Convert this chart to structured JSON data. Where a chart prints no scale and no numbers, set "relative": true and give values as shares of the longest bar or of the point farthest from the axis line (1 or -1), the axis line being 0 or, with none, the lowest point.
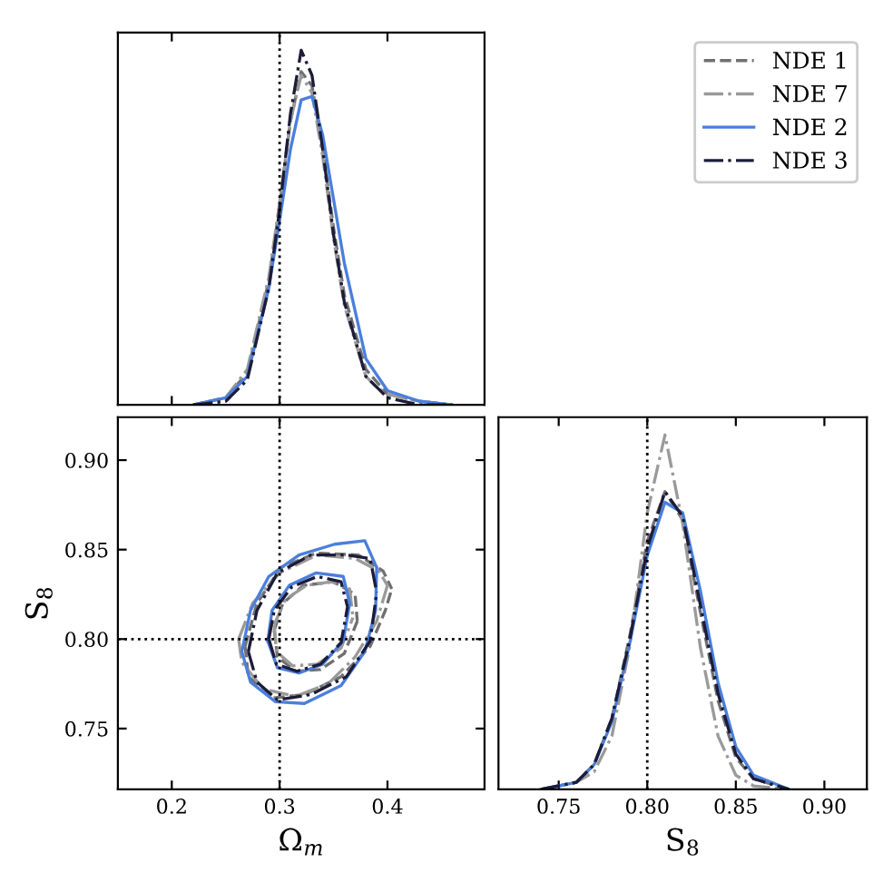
{
  "chart_data": [
    {
      "type": "line",
      "relative": true,
      "xlim": [
        0.15,
        0.49
      ],
      "xticks": [
        0.2,
        0.3,
        0.4
      ],
      "tick_labels": false,
      "legend": "top right",
      "grid": false,
      "ref_lines": [
        {
          "axis": "x",
          "value": 0.3,
          "color": "#000000",
          "line_style": "dotted"
        }
      ],
      "series": [
        {
          "name": "NDE 1",
          "color": "#707070",
          "line_style": "dashed",
          "x": [
            0.22,
            0.25,
            0.27,
            0.29,
            0.3,
            0.31,
            0.32,
            0.33,
            0.34,
            0.35,
            0.36,
            0.38,
            0.4,
            0.43,
            0.46
          ],
          "values": [
            0,
            0.02,
            0.09,
            0.35,
            0.56,
            0.8,
            0.94,
            0.9,
            0.72,
            0.5,
            0.31,
            0.1,
            0.03,
            0.01,
            0
          ]
        },
        {
          "name": "NDE 7",
          "color": "#9a9a9a",
          "line_style": "dashdot",
          "x": [
            0.22,
            0.25,
            0.27,
            0.29,
            0.3,
            0.31,
            0.32,
            0.33,
            0.34,
            0.35,
            0.36,
            0.38,
            0.39,
            0.4,
            0.43,
            0.46
          ],
          "values": [
            0,
            0.02,
            0.1,
            0.36,
            0.57,
            0.8,
            0.93,
            0.88,
            0.7,
            0.47,
            0.28,
            0.08,
            0.05,
            0.03,
            0.01,
            0
          ]
        },
        {
          "name": "NDE 2",
          "color": "#4a7fdc",
          "line_style": "solid",
          "x": [
            0.22,
            0.25,
            0.27,
            0.29,
            0.3,
            0.31,
            0.32,
            0.33,
            0.34,
            0.35,
            0.36,
            0.38,
            0.4,
            0.43,
            0.46
          ],
          "values": [
            0,
            0.02,
            0.08,
            0.33,
            0.52,
            0.72,
            0.86,
            0.87,
            0.76,
            0.58,
            0.4,
            0.13,
            0.04,
            0.01,
            0
          ]
        },
        {
          "name": "NDE 3",
          "color": "#1c1c3a",
          "line_style": "dashdot",
          "x": [
            0.22,
            0.25,
            0.27,
            0.29,
            0.3,
            0.31,
            0.32,
            0.33,
            0.34,
            0.35,
            0.36,
            0.38,
            0.4,
            0.43,
            0.46
          ],
          "values": [
            0,
            0.01,
            0.07,
            0.33,
            0.55,
            0.82,
            1,
            0.93,
            0.72,
            0.48,
            0.29,
            0.08,
            0.02,
            0,
            0
          ]
        }
      ]
    },
    {
      "type": "line",
      "xlabel": "Ω$_{m}$",
      "ylabel": "S$_{8}$",
      "xlim": [
        0.15,
        0.49
      ],
      "xticks": [
        0.2,
        0.3,
        0.4
      ],
      "ylim": [
        0.716,
        0.924
      ],
      "yticks": [
        0.75,
        {
          "value": 0.8,
          "label": "0.80"
        },
        0.85,
        {
          "value": 0.9,
          "label": "0.90"
        }
      ],
      "grid": false,
      "ref_lines": [
        {
          "axis": "x",
          "value": 0.3,
          "color": "#000000",
          "line_style": "dotted"
        },
        {
          "axis": "y",
          "value": 0.8,
          "color": "#000000",
          "line_style": "dotted"
        }
      ],
      "series": [
        {
          "color": "#707070",
          "line_style": "dashed",
          "x": [
            0.268,
            0.279,
            0.301,
            0.334,
            0.373,
            0.396,
            0.404,
            null,
            0.268,
            0.271,
            0.293,
            0.323,
            0.357,
            0.384,
            0.398,
            0.404,
            null,
            0.295,
            0.303,
            0.322,
            0.35,
            0.37,
            0.372,
            null,
            0.295,
            0.298,
            0.315,
            0.338,
            0.36,
            0.372
          ],
          "values": [
            0.796,
            0.82,
            0.84,
            0.848,
            0.847,
            0.838,
            0.828,
            null,
            0.796,
            0.779,
            0.767,
            0.769,
            0.779,
            0.796,
            0.816,
            0.828,
            null,
            0.805,
            0.82,
            0.83,
            0.832,
            0.825,
            0.81,
            null,
            0.805,
            0.79,
            0.782,
            0.783,
            0.792,
            0.81
          ]
        },
        {
          "color": "#9a9a9a",
          "line_style": "dashdot",
          "x": [
            0.262,
            0.275,
            0.3,
            0.335,
            0.37,
            0.392,
            0.4,
            null,
            0.262,
            0.265,
            0.285,
            0.315,
            0.345,
            0.37,
            0.39,
            0.4,
            null,
            0.295,
            0.305,
            0.325,
            0.348,
            0.365,
            0.368,
            null,
            0.295,
            0.297,
            0.312,
            0.335,
            0.357,
            0.368
          ],
          "values": [
            0.8,
            0.82,
            0.837,
            0.847,
            0.845,
            0.838,
            0.83,
            null,
            0.8,
            0.787,
            0.772,
            0.768,
            0.775,
            0.79,
            0.81,
            0.83,
            null,
            0.808,
            0.822,
            0.83,
            0.832,
            0.828,
            0.812,
            null,
            0.808,
            0.793,
            0.785,
            0.786,
            0.795,
            0.812
          ]
        },
        {
          "color": "#4a7fdc",
          "line_style": "solid",
          "x": [
            0.265,
            0.273,
            0.29,
            0.318,
            0.351,
            0.379,
            0.39,
            null,
            0.265,
            0.273,
            0.296,
            0.323,
            0.357,
            0.379,
            0.389,
            0.39,
            null,
            0.289,
            0.293,
            0.309,
            0.334,
            0.359,
            0.365,
            null,
            0.289,
            0.298,
            0.318,
            0.34,
            0.359,
            0.365
          ],
          "values": [
            0.793,
            0.816,
            0.835,
            0.847,
            0.853,
            0.855,
            0.84,
            null,
            0.793,
            0.776,
            0.765,
            0.764,
            0.774,
            0.793,
            0.816,
            0.84,
            null,
            0.799,
            0.816,
            0.83,
            0.837,
            0.835,
            0.82,
            null,
            0.799,
            0.784,
            0.781,
            0.786,
            0.799,
            0.82
          ]
        },
        {
          "color": "#1c1c3a",
          "line_style": "dashdot",
          "x": [
            0.271,
            0.279,
            0.298,
            0.329,
            0.362,
            0.384,
            0.39,
            null,
            0.271,
            0.279,
            0.298,
            0.329,
            0.362,
            0.384,
            0.39,
            null,
            0.29,
            0.295,
            0.311,
            0.335,
            0.357,
            0.363,
            null,
            0.29,
            0.297,
            0.316,
            0.338,
            0.357,
            0.363
          ],
          "values": [
            0.793,
            0.816,
            0.837,
            0.847,
            0.847,
            0.845,
            0.826,
            null,
            0.793,
            0.776,
            0.766,
            0.769,
            0.779,
            0.799,
            0.826,
            null,
            0.8,
            0.816,
            0.829,
            0.835,
            0.832,
            0.818,
            null,
            0.8,
            0.786,
            0.782,
            0.786,
            0.798,
            0.818
          ]
        }
      ]
    },
    {
      "type": "line",
      "relative": true,
      "xlabel": "S$_{8}$",
      "xlim": [
        0.716,
        0.924
      ],
      "xticks": [
        0.75,
        {
          "value": 0.8,
          "label": "0.80"
        },
        0.85,
        {
          "value": 0.9,
          "label": "0.90"
        }
      ],
      "tick_labels": "x",
      "grid": false,
      "ref_lines": [
        {
          "axis": "x",
          "value": 0.8,
          "color": "#000000",
          "line_style": "dotted"
        }
      ],
      "series": [
        {
          "color": "#707070",
          "line_style": "dashed",
          "x": [
            0.74,
            0.76,
            0.77,
            0.78,
            0.79,
            0.8,
            0.81,
            0.82,
            0.83,
            0.84,
            0.85,
            0.86,
            0.88
          ],
          "values": [
            0,
            0.02,
            0.07,
            0.2,
            0.43,
            0.7,
            0.84,
            0.76,
            0.5,
            0.25,
            0.09,
            0.03,
            0
          ]
        },
        {
          "color": "#9a9a9a",
          "line_style": "dashdot",
          "x": [
            0.74,
            0.76,
            0.77,
            0.78,
            0.79,
            0.8,
            0.81,
            0.82,
            0.83,
            0.84,
            0.85,
            0.86,
            0.88
          ],
          "values": [
            0,
            0.02,
            0.05,
            0.15,
            0.4,
            0.78,
            1,
            0.75,
            0.4,
            0.15,
            0.04,
            0.01,
            0
          ]
        },
        {
          "color": "#4a7fdc",
          "line_style": "solid",
          "x": [
            0.74,
            0.76,
            0.77,
            0.78,
            0.79,
            0.8,
            0.81,
            0.82,
            0.83,
            0.84,
            0.85,
            0.86,
            0.88
          ],
          "values": [
            0,
            0.02,
            0.07,
            0.19,
            0.41,
            0.66,
            0.81,
            0.78,
            0.56,
            0.3,
            0.12,
            0.04,
            0
          ]
        },
        {
          "color": "#1c1c3a",
          "line_style": "dashdot",
          "x": [
            0.74,
            0.76,
            0.77,
            0.78,
            0.79,
            0.8,
            0.81,
            0.82,
            0.83,
            0.84,
            0.85,
            0.86,
            0.88
          ],
          "values": [
            0,
            0.02,
            0.07,
            0.2,
            0.42,
            0.68,
            0.84,
            0.77,
            0.52,
            0.27,
            0.1,
            0.03,
            0
          ]
        }
      ]
    }
  ]
}
